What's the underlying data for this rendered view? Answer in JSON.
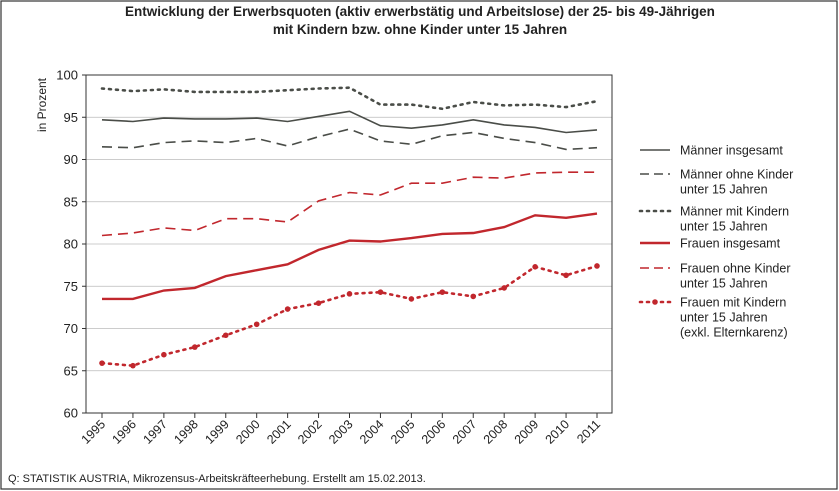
{
  "chart_data": {
    "type": "line",
    "title": "Entwicklung der Erwerbsquoten (aktiv erwerbstätig und Arbeitslose) der 25- bis 49-Jährigen\nmit Kindern bzw. ohne Kinder unter 15 Jahren",
    "y_label": "in Prozent",
    "source": "Q: STATISTIK AUSTRIA, Mikrozensus-Arbeitskräfteerhebung. Erstellt am 15.02.2013.",
    "x": [
      "1995",
      "1996",
      "1997",
      "1998",
      "1999",
      "2000",
      "2001",
      "2002",
      "2003",
      "2004",
      "2005",
      "2006",
      "2007",
      "2008",
      "2009",
      "2010",
      "2011"
    ],
    "ylim": [
      60,
      100
    ],
    "yticks": [
      60,
      65,
      70,
      75,
      80,
      85,
      90,
      95,
      100
    ],
    "grid": true,
    "series": [
      {
        "name": "Männer insgesamt",
        "color": "#4a4d48",
        "line_style": "solid",
        "markers": false,
        "values": [
          94.7,
          94.5,
          94.9,
          94.8,
          94.8,
          94.9,
          94.5,
          95.1,
          95.7,
          94.0,
          93.7,
          94.1,
          94.7,
          94.1,
          93.8,
          93.2,
          93.5
        ]
      },
      {
        "name": "Männer ohne Kinder\nunter 15 Jahren",
        "color": "#4a4d48",
        "line_style": "dashed",
        "markers": false,
        "values": [
          91.5,
          91.4,
          92.0,
          92.2,
          92.0,
          92.5,
          91.6,
          92.7,
          93.6,
          92.2,
          91.8,
          92.8,
          93.2,
          92.5,
          92.0,
          91.2,
          91.4
        ]
      },
      {
        "name": "Männer mit Kindern\nunter 15 Jahren",
        "color": "#4a4d48",
        "line_style": "dotted",
        "markers": false,
        "values": [
          98.4,
          98.1,
          98.3,
          98.0,
          98.0,
          98.0,
          98.2,
          98.4,
          98.5,
          96.5,
          96.5,
          96.0,
          96.8,
          96.4,
          96.5,
          96.2,
          96.9
        ]
      },
      {
        "name": "Frauen insgesamt",
        "color": "#c1272d",
        "line_style": "solid",
        "markers": false,
        "values": [
          73.5,
          73.5,
          74.5,
          74.8,
          76.2,
          76.9,
          77.6,
          79.3,
          80.4,
          80.3,
          80.7,
          81.2,
          81.3,
          82.0,
          83.4,
          83.1,
          83.6
        ]
      },
      {
        "name": "Frauen ohne Kinder\nunter 15 Jahren",
        "color": "#c1272d",
        "line_style": "dashed",
        "markers": false,
        "values": [
          81.0,
          81.3,
          81.9,
          81.6,
          83.0,
          83.0,
          82.6,
          85.1,
          86.1,
          85.8,
          87.2,
          87.2,
          87.9,
          87.8,
          88.4,
          88.5,
          88.5
        ]
      },
      {
        "name": "Frauen mit Kindern\nunter 15 Jahren\n(exkl. Elternkarenz)",
        "color": "#c1272d",
        "line_style": "dotted",
        "markers": true,
        "values": [
          65.9,
          65.6,
          66.9,
          67.8,
          69.2,
          70.5,
          72.3,
          73.0,
          74.1,
          74.3,
          73.5,
          74.3,
          73.8,
          74.8,
          77.3,
          76.3,
          77.4
        ]
      }
    ]
  }
}
